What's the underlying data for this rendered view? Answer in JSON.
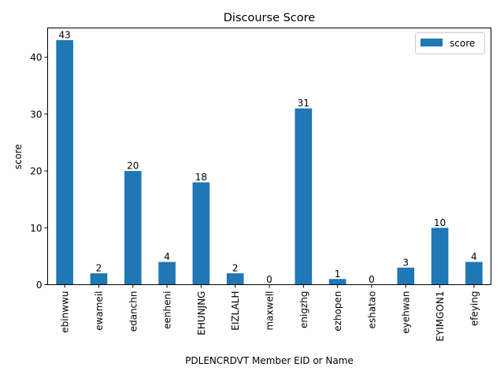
{
  "chart_data": {
    "type": "bar",
    "title": "Discourse Score",
    "xlabel": "PDLENCRDVT Member EID or Name",
    "ylabel": "score",
    "categories": [
      "ebinwwu",
      "ewameil",
      "edanchn",
      "eenheni",
      "EHUNJNG",
      "EIZLALH",
      "maxwell",
      "enigzhg",
      "ezhopen",
      "eshatao",
      "eyehwan",
      "EYIMGON1",
      "efeying"
    ],
    "series": [
      {
        "name": "score",
        "values": [
          43,
          2,
          20,
          4,
          18,
          2,
          0,
          31,
          1,
          0,
          3,
          10,
          4
        ]
      }
    ],
    "ylim": [
      0,
      45.15
    ],
    "yticks": [
      0,
      10,
      20,
      30,
      40
    ],
    "grid": false,
    "legend_position": "top-right",
    "bar_color": "#1f77b4"
  }
}
